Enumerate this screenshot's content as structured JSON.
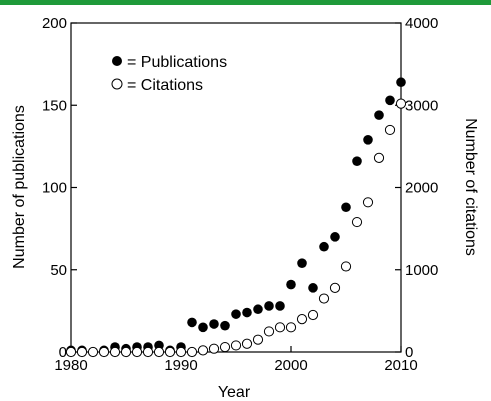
{
  "colors": {
    "top_bar": "#1f9a3a",
    "axis": "#000000",
    "publications_marker": "#000000",
    "citations_marker": "#ffffff",
    "citations_stroke": "#000000"
  },
  "chart_data": {
    "type": "scatter",
    "xlabel": "Year",
    "ylabel_left": "Number of publications",
    "ylabel_right": "Number of citations",
    "xlim": [
      1980,
      2010
    ],
    "ylim_left": [
      0,
      200
    ],
    "ylim_right": [
      0,
      4000
    ],
    "x_ticks": [
      "1980",
      "1990",
      "2000",
      "2010"
    ],
    "x_tick_values": [
      1980,
      1990,
      2000,
      2010
    ],
    "y_ticks_left": [
      "0",
      "50",
      "100",
      "150",
      "200"
    ],
    "y_tick_values_left": [
      0,
      50,
      100,
      150,
      200
    ],
    "y_ticks_right": [
      "0",
      "1000",
      "2000",
      "3000",
      "4000"
    ],
    "y_tick_values_right": [
      0,
      1000,
      2000,
      3000,
      4000
    ],
    "grid": false,
    "legend_position": "top-left",
    "series": [
      {
        "name": "= Publications",
        "axis": "left",
        "marker": "filled-circle",
        "points": [
          [
            1980,
            1
          ],
          [
            1981,
            1
          ],
          [
            1982,
            0
          ],
          [
            1983,
            1
          ],
          [
            1984,
            3
          ],
          [
            1985,
            2
          ],
          [
            1986,
            3
          ],
          [
            1987,
            3
          ],
          [
            1988,
            4
          ],
          [
            1989,
            1
          ],
          [
            1990,
            3
          ],
          [
            1991,
            18
          ],
          [
            1992,
            15
          ],
          [
            1993,
            17
          ],
          [
            1994,
            16
          ],
          [
            1995,
            23
          ],
          [
            1996,
            24
          ],
          [
            1997,
            26
          ],
          [
            1998,
            28
          ],
          [
            1999,
            28
          ],
          [
            2000,
            41
          ],
          [
            2001,
            54
          ],
          [
            2002,
            39
          ],
          [
            2003,
            64
          ],
          [
            2004,
            70
          ],
          [
            2005,
            88
          ],
          [
            2006,
            116
          ],
          [
            2007,
            129
          ],
          [
            2008,
            144
          ],
          [
            2009,
            153
          ],
          [
            2010,
            164
          ]
        ]
      },
      {
        "name": "= Citations",
        "axis": "right",
        "marker": "open-circle",
        "points": [
          [
            1980,
            0
          ],
          [
            1981,
            0
          ],
          [
            1982,
            0
          ],
          [
            1983,
            0
          ],
          [
            1984,
            0
          ],
          [
            1985,
            0
          ],
          [
            1986,
            0
          ],
          [
            1987,
            0
          ],
          [
            1988,
            0
          ],
          [
            1989,
            0
          ],
          [
            1990,
            0
          ],
          [
            1991,
            0
          ],
          [
            1992,
            20
          ],
          [
            1993,
            40
          ],
          [
            1994,
            60
          ],
          [
            1995,
            80
          ],
          [
            1996,
            100
          ],
          [
            1997,
            150
          ],
          [
            1998,
            250
          ],
          [
            1999,
            300
          ],
          [
            2000,
            300
          ],
          [
            2001,
            400
          ],
          [
            2002,
            450
          ],
          [
            2003,
            650
          ],
          [
            2004,
            780
          ],
          [
            2005,
            1040
          ],
          [
            2006,
            1580
          ],
          [
            2007,
            1820
          ],
          [
            2008,
            2360
          ],
          [
            2009,
            2700
          ],
          [
            2010,
            3020
          ]
        ]
      }
    ]
  }
}
